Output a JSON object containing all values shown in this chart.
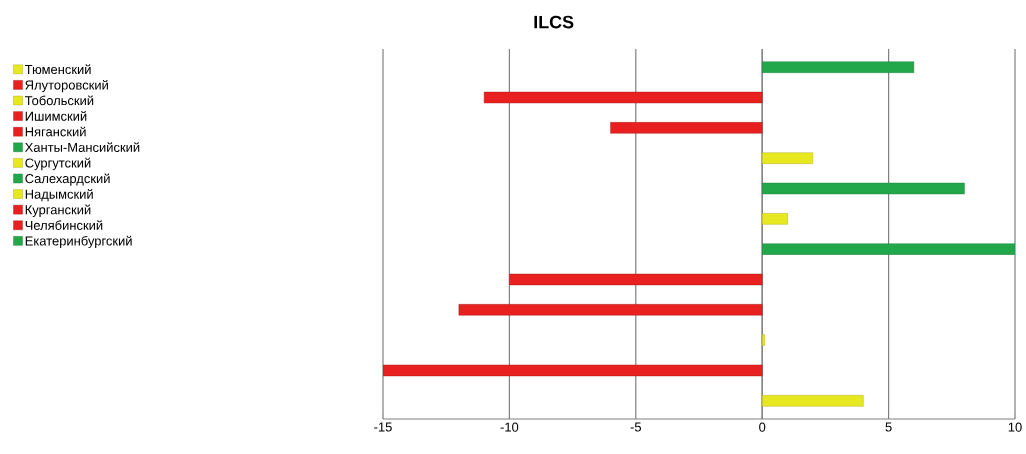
{
  "chart_data": {
    "type": "bar",
    "title": "ILCS",
    "orientation": "horizontal",
    "categories": [
      null,
      null,
      null,
      null,
      null,
      null,
      null,
      null,
      null,
      null,
      null,
      null
    ],
    "series": [
      {
        "name": "Екатеринбургский",
        "color": "#22a84a",
        "values": [
          6,
          null,
          null,
          null,
          null,
          null,
          null,
          null,
          null,
          null,
          null,
          null
        ]
      },
      {
        "name": "Челябинский",
        "color": "#e82020",
        "values": [
          null,
          -11,
          null,
          null,
          null,
          null,
          null,
          null,
          null,
          null,
          null,
          null
        ]
      },
      {
        "name": "Курганский",
        "color": "#e82020",
        "values": [
          null,
          null,
          -6,
          null,
          null,
          null,
          null,
          null,
          null,
          null,
          null,
          null
        ]
      },
      {
        "name": "Надымский",
        "color": "#e8e820",
        "values": [
          null,
          null,
          null,
          2,
          null,
          null,
          null,
          null,
          null,
          null,
          null,
          null
        ]
      },
      {
        "name": "Салехардский",
        "color": "#22a84a",
        "values": [
          null,
          null,
          null,
          null,
          8,
          null,
          null,
          null,
          null,
          null,
          null,
          null
        ]
      },
      {
        "name": "Сургутский",
        "color": "#e8e820",
        "values": [
          null,
          null,
          null,
          null,
          null,
          1,
          null,
          null,
          null,
          null,
          null,
          null
        ]
      },
      {
        "name": "Ханты-Мансийский",
        "color": "#22a84a",
        "values": [
          null,
          null,
          null,
          null,
          null,
          null,
          10,
          null,
          null,
          null,
          null,
          null
        ]
      },
      {
        "name": "Няганский",
        "color": "#e82020",
        "values": [
          null,
          null,
          null,
          null,
          null,
          null,
          null,
          -10,
          null,
          null,
          null,
          null
        ]
      },
      {
        "name": "Ишимский",
        "color": "#e82020",
        "values": [
          null,
          null,
          null,
          null,
          null,
          null,
          null,
          null,
          -12,
          null,
          null,
          null
        ]
      },
      {
        "name": "Тобольский",
        "color": "#e8e820",
        "values": [
          null,
          null,
          null,
          null,
          null,
          null,
          null,
          null,
          null,
          0.1,
          null,
          null
        ]
      },
      {
        "name": "Ялуторовский",
        "color": "#e82020",
        "values": [
          null,
          null,
          null,
          null,
          null,
          null,
          null,
          null,
          null,
          null,
          -15,
          null
        ]
      },
      {
        "name": "Тюменский",
        "color": "#e8e820",
        "values": [
          null,
          null,
          null,
          null,
          null,
          null,
          null,
          null,
          null,
          null,
          null,
          4
        ]
      }
    ],
    "xlim": [
      -15,
      10
    ],
    "xticks": [
      -15,
      -10,
      -5,
      0,
      5,
      10
    ],
    "grid": "x",
    "legend": "left",
    "tick_labels": "x"
  }
}
